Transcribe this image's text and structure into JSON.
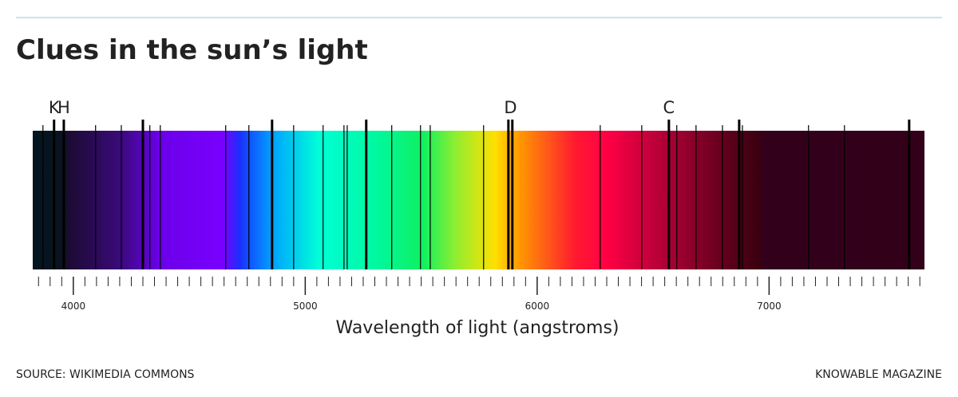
{
  "chart_data": {
    "type": "spectrum",
    "title": "Clues in the sun’s light",
    "xlabel": "Wavelength of light (angstroms)",
    "source": "SOURCE: WIKIMEDIA COMMONS",
    "credit": "KNOWABLE MAGAZINE",
    "xlim": [
      3825,
      7670
    ],
    "xticks": [
      4000,
      5000,
      6000,
      7000
    ],
    "minor_xticks": [
      3850,
      3900,
      3950,
      4050,
      4100,
      4150,
      4200,
      4250,
      4300,
      4350,
      4400,
      4450,
      4500,
      4550,
      4600,
      4650,
      4700,
      4750,
      4800,
      4850,
      4900,
      4950,
      5050,
      5100,
      5150,
      5200,
      5250,
      5300,
      5350,
      5400,
      5450,
      5500,
      5550,
      5600,
      5650,
      5700,
      5750,
      5800,
      5850,
      5900,
      5950,
      6050,
      6100,
      6150,
      6200,
      6250,
      6300,
      6350,
      6400,
      6450,
      6500,
      6550,
      6600,
      6650,
      6700,
      6750,
      6800,
      6850,
      6900,
      6950,
      7050,
      7100,
      7150,
      7200,
      7250,
      7300,
      7350,
      7400,
      7450,
      7500,
      7550,
      7600,
      7650
    ],
    "absorption_lines": [
      3869,
      4096,
      4207,
      4330,
      4375,
      4657,
      4757,
      4950,
      5077,
      5167,
      5181,
      5373,
      5497,
      5539,
      5769,
      6272,
      6451,
      6602,
      6685,
      6799,
      6885,
      7170,
      7325
    ],
    "strong_lines": [
      3917,
      3959,
      4300,
      4857,
      5263,
      5876,
      5893,
      6568,
      6871,
      7604
    ],
    "annotations": [
      {
        "text": "K",
        "x": 3917
      },
      {
        "text": "H",
        "x": 3959
      },
      {
        "text": "D",
        "x": 5885
      },
      {
        "text": "C",
        "x": 6568
      }
    ]
  }
}
